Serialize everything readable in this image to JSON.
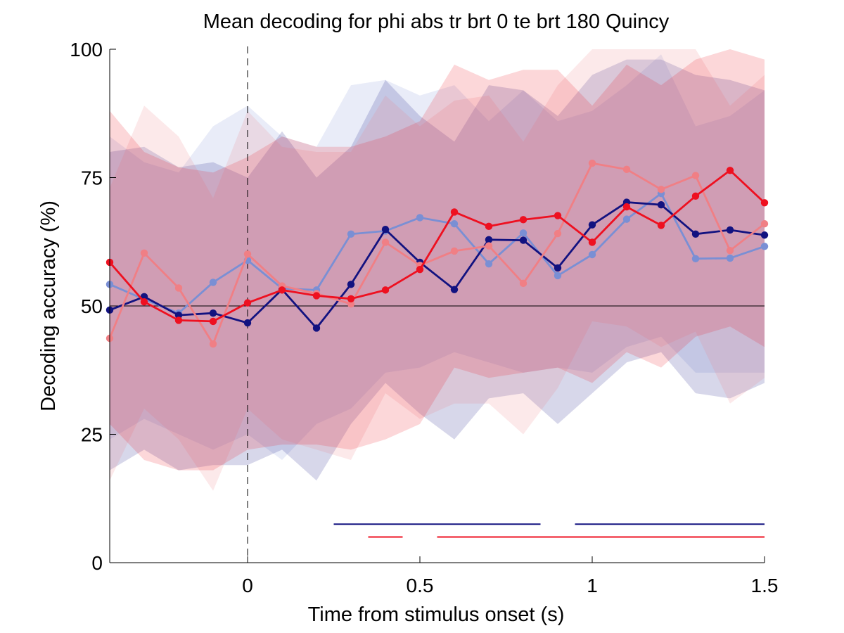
{
  "chart_data": {
    "type": "line",
    "title": "Mean decoding for phi abs tr brt 0 te brt 180  Quincy",
    "xlabel": "Time from stimulus onset (s)",
    "ylabel": "Decoding accuracy (%)",
    "xlim": [
      -0.4,
      1.5
    ],
    "ylim": [
      0,
      100
    ],
    "xticks": [
      0,
      0.5,
      1,
      1.5
    ],
    "xtick_labels": [
      "0",
      "0.5",
      "1",
      "1.5"
    ],
    "yticks": [
      0,
      25,
      50,
      75,
      100
    ],
    "ytick_labels": [
      "0",
      "25",
      "50",
      "75",
      "100"
    ],
    "grid": false,
    "chance_level": 50,
    "stimulus_onset": 0,
    "x": [
      -0.4,
      -0.3,
      -0.2,
      -0.1,
      0.0,
      0.1,
      0.2,
      0.3,
      0.4,
      0.5,
      0.6,
      0.7,
      0.8,
      0.9,
      1.0,
      1.1,
      1.2,
      1.3,
      1.4,
      1.5
    ],
    "series": [
      {
        "color": "#7a8fd4",
        "values": [
          54.2,
          51.3,
          48.6,
          54.6,
          58.9,
          53.4,
          53.1,
          64.0,
          64.6,
          67.2,
          66.0,
          58.2,
          64.2,
          55.9,
          60.0,
          66.9,
          71.9,
          59.2,
          59.3,
          61.6
        ],
        "band_lower": [
          24.0,
          28.0,
          25.0,
          22.0,
          25.0,
          20.0,
          27.0,
          30.0,
          37.0,
          38.0,
          41.0,
          39.0,
          37.0,
          38.0,
          37.0,
          42.0,
          44.0,
          37.0,
          37.0,
          37.0
        ],
        "band_upper": [
          83.0,
          78.0,
          76.0,
          85.0,
          89.0,
          83.0,
          81.0,
          93.0,
          94.0,
          91.0,
          93.0,
          86.0,
          92.0,
          86.0,
          88.0,
          93.0,
          99.0,
          85.0,
          87.0,
          92.0
        ]
      },
      {
        "color": "#121280",
        "values": [
          49.2,
          51.8,
          48.2,
          48.6,
          46.7,
          53.2,
          45.7,
          54.2,
          64.9,
          58.5,
          53.2,
          62.9,
          62.8,
          57.4,
          65.8,
          70.2,
          69.7,
          64.0,
          64.8,
          63.8
        ],
        "band_lower": [
          18.0,
          22.0,
          18.0,
          19.0,
          19.0,
          22.0,
          16.0,
          27.0,
          35.0,
          29.0,
          24.0,
          32.0,
          33.0,
          27.0,
          33.0,
          39.0,
          41.0,
          33.0,
          32.0,
          35.0
        ],
        "band_upper": [
          80.0,
          81.0,
          77.0,
          78.0,
          75.0,
          84.0,
          75.0,
          81.0,
          94.0,
          87.0,
          82.0,
          93.0,
          92.0,
          87.0,
          95.0,
          98.0,
          98.0,
          95.0,
          94.0,
          92.0
        ]
      },
      {
        "color": "#f07f85",
        "values": [
          43.7,
          60.3,
          53.5,
          42.6,
          60.1,
          53.9,
          52.4,
          50.4,
          62.4,
          57.9,
          60.7,
          61.7,
          54.4,
          64.1,
          77.8,
          76.6,
          72.7,
          75.4,
          60.8,
          66.0
        ],
        "band_lower": [
          16.0,
          30.0,
          24.0,
          14.0,
          30.0,
          24.0,
          22.0,
          20.0,
          33.0,
          28.0,
          31.0,
          31.0,
          25.0,
          34.0,
          47.0,
          46.0,
          42.0,
          45.0,
          31.0,
          36.0
        ],
        "band_upper": [
          73.0,
          89.0,
          83.0,
          71.0,
          88.0,
          81.0,
          80.0,
          80.0,
          91.0,
          85.0,
          90.0,
          91.0,
          82.0,
          93.0,
          100.0,
          100.0,
          100.0,
          100.0,
          89.0,
          95.0
        ]
      },
      {
        "color": "#ee1020",
        "values": [
          58.5,
          50.8,
          47.2,
          47.0,
          50.6,
          53.1,
          52.0,
          51.4,
          53.1,
          57.1,
          68.3,
          65.5,
          66.8,
          67.6,
          62.4,
          69.3,
          65.7,
          71.4,
          76.4,
          70.1
        ],
        "band_lower": [
          27.0,
          20.0,
          18.0,
          18.0,
          22.0,
          23.0,
          23.0,
          22.0,
          24.0,
          27.0,
          38.0,
          36.0,
          37.0,
          38.0,
          35.0,
          41.0,
          38.0,
          44.0,
          46.0,
          42.0
        ],
        "band_upper": [
          88.0,
          80.0,
          77.0,
          76.0,
          79.0,
          83.0,
          81.0,
          81.0,
          83.0,
          86.0,
          97.0,
          94.0,
          96.0,
          96.0,
          89.0,
          97.0,
          93.0,
          98.0,
          100.0,
          98.0
        ]
      }
    ],
    "significance_bars": [
      {
        "color": "#121280",
        "y": 7.5,
        "segments": [
          [
            0.25,
            0.85
          ],
          [
            0.95,
            1.5
          ]
        ]
      },
      {
        "color": "#ee1020",
        "y": 5.0,
        "segments": [
          [
            0.35,
            0.45
          ],
          [
            0.55,
            1.5
          ]
        ]
      }
    ]
  }
}
